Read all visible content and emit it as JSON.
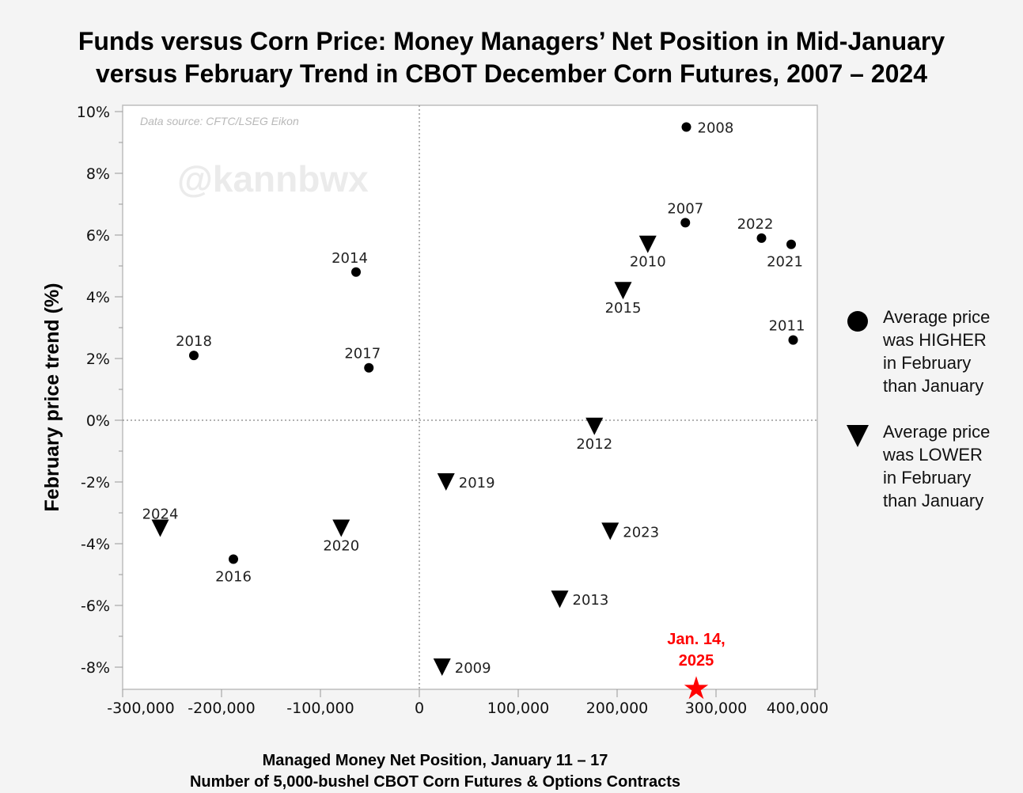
{
  "title_lines": [
    "Funds versus Corn Price: Money Managers’ Net Position in Mid-January",
    "versus February Trend in CBOT December Corn Futures, 2007 – 2024"
  ],
  "chart_data": {
    "type": "scatter",
    "title": "Funds versus Corn Price: Money Managers’ Net Position in Mid-January versus February Trend in CBOT December Corn Futures, 2007 – 2024",
    "xlabel_lines": [
      "Managed Money Net Position, January 11 – 17",
      "Number of 5,000-bushel CBOT Corn Futures & Options Contracts"
    ],
    "ylabel": "February price trend (%)",
    "xlim": [
      -300000,
      400000
    ],
    "ylim": [
      -8.75,
      10.2
    ],
    "x_ticks": [
      -300000,
      -200000,
      -100000,
      0,
      100000,
      200000,
      300000,
      400000
    ],
    "x_tick_labels": [
      "-300,000",
      "-200,000",
      "-100,000",
      "0",
      "100,000",
      "200,000",
      "300,000",
      "400,000"
    ],
    "y_ticks": [
      10,
      8,
      6,
      4,
      2,
      0,
      -2,
      -4,
      -6,
      -8
    ],
    "y_tick_labels": [
      "10%",
      "8%",
      "6%",
      "4%",
      "2%",
      "0%",
      "-2%",
      "-4%",
      "-6%",
      "-8%"
    ],
    "source_note": "Data source: CFTC/LSEG Eikon",
    "watermark": "@kannbwx",
    "series": [
      {
        "name": "Average price was HIGHER in February than January",
        "marker": "circle",
        "points": [
          {
            "label": "2008",
            "x": 270000,
            "y": 9.5,
            "label_pos": "right"
          },
          {
            "label": "2007",
            "x": 269000,
            "y": 6.4,
            "label_pos": "above"
          },
          {
            "label": "2022",
            "x": 346000,
            "y": 5.9,
            "label_pos": "above-left"
          },
          {
            "label": "2021",
            "x": 376000,
            "y": 5.7,
            "label_pos": "below-left"
          },
          {
            "label": "2011",
            "x": 378000,
            "y": 2.6,
            "label_pos": "above-left"
          },
          {
            "label": "2014",
            "x": -64000,
            "y": 4.8,
            "label_pos": "above-left"
          },
          {
            "label": "2017",
            "x": -51000,
            "y": 1.7,
            "label_pos": "above-left"
          },
          {
            "label": "2018",
            "x": -228000,
            "y": 2.1,
            "label_pos": "above"
          },
          {
            "label": "2016",
            "x": -188000,
            "y": -4.5,
            "label_pos": "below"
          }
        ]
      },
      {
        "name": "Average price was LOWER in February than January",
        "marker": "triangle-down",
        "points": [
          {
            "label": "2010",
            "x": 231000,
            "y": 5.7,
            "label_pos": "below"
          },
          {
            "label": "2015",
            "x": 206000,
            "y": 4.2,
            "label_pos": "below"
          },
          {
            "label": "2012",
            "x": 177000,
            "y": -0.2,
            "label_pos": "below"
          },
          {
            "label": "2019",
            "x": 27000,
            "y": -2.0,
            "label_pos": "right"
          },
          {
            "label": "2023",
            "x": 193000,
            "y": -3.6,
            "label_pos": "right"
          },
          {
            "label": "2013",
            "x": 142000,
            "y": -5.8,
            "label_pos": "right"
          },
          {
            "label": "2009",
            "x": 23000,
            "y": -8.0,
            "label_pos": "right"
          },
          {
            "label": "2024",
            "x": -262000,
            "y": -3.5,
            "label_pos": "above"
          },
          {
            "label": "2020",
            "x": -79000,
            "y": -3.5,
            "label_pos": "below"
          }
        ]
      }
    ],
    "highlight": {
      "label_lines": [
        "Jan. 14,",
        "2025"
      ],
      "x": 280000,
      "y": -8.7,
      "marker": "star",
      "color": "#ff0000"
    }
  },
  "legend": [
    {
      "marker": "circle",
      "lines": [
        "Average price",
        "was HIGHER",
        "in February",
        "than January"
      ]
    },
    {
      "marker": "triangle-down",
      "lines": [
        "Average price",
        "was LOWER",
        "in February",
        "than January"
      ]
    }
  ]
}
